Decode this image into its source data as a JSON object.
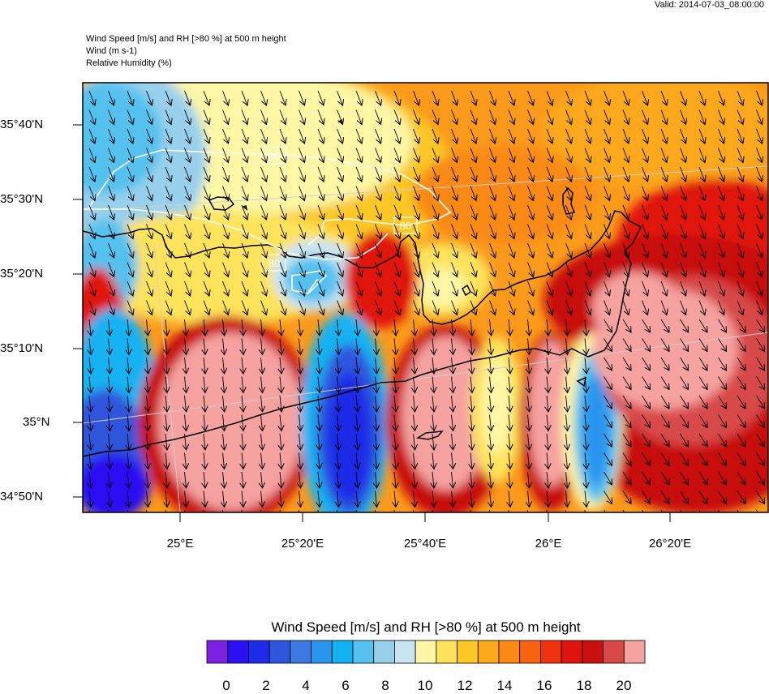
{
  "header": {
    "valid": "Valid: 2014-07-03_08:00:00",
    "title_lines": [
      "Wind Speed [m/s] and RH [>80 %] at 500 m height",
      "Wind   (m s-1)",
      "Relative Humidity   (%)"
    ]
  },
  "axes": {
    "lat_labels": [
      "35°40'N",
      "35°30'N",
      "35°20'N",
      "35°10'N",
      "35°N",
      "34°50'N"
    ],
    "lon_labels": [
      "25°E",
      "25°20'E",
      "25°40'E",
      "26°E",
      "26°20'E"
    ]
  },
  "contour_labels": [
    "80",
    "80",
    "80"
  ],
  "colorbar": {
    "title": "Wind Speed [m/s] and RH [>80 %] at 500 m height",
    "labels": [
      "0",
      "2",
      "4",
      "6",
      "8",
      "10",
      "12",
      "14",
      "16",
      "18",
      "20"
    ],
    "colors": [
      "#7b1fe0",
      "#2c0ff2",
      "#1d2ce8",
      "#2f55dc",
      "#3b79e2",
      "#2a95ee",
      "#12b2f2",
      "#55c1ee",
      "#98d0ec",
      "#c7e4f2",
      "#fff7a6",
      "#ffe35b",
      "#fdc726",
      "#fca81c",
      "#fa8a14",
      "#f66411",
      "#ef330f",
      "#e0140f",
      "#c8100f",
      "#d84848",
      "#f6a2a0"
    ]
  },
  "field": {
    "colors": [
      "#7b1fe0",
      "#2c0ff2",
      "#1d2ce8",
      "#2f55dc",
      "#3b79e2",
      "#2a95ee",
      "#12b2f2",
      "#55c1ee",
      "#98d0ec",
      "#c7e4f2",
      "#fff7a6",
      "#ffe35b",
      "#fdc726",
      "#fca81c",
      "#fa8a14",
      "#f66411",
      "#ef330f",
      "#e0140f",
      "#c8100f",
      "#d84848",
      "#f6a2a0"
    ],
    "background_color": "#fb9a1b",
    "wind_direction": "north-northwest"
  }
}
